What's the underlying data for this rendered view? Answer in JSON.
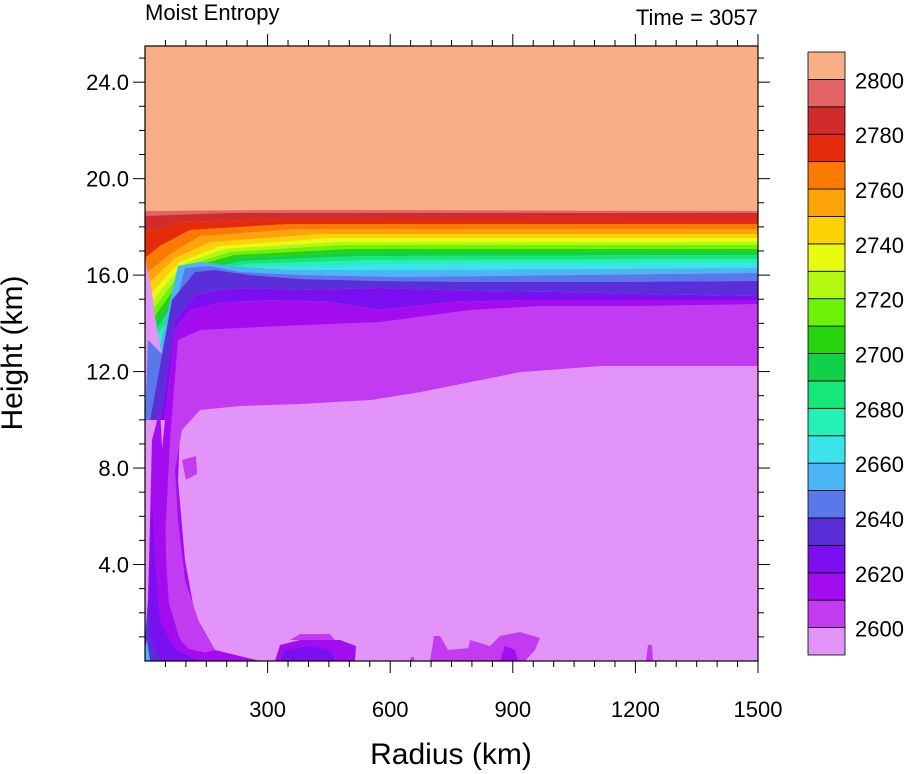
{
  "chart_data": {
    "type": "contour",
    "title_left": "Moist Entropy",
    "title_right": "Time = 3057",
    "xlabel": "Radius (km)",
    "ylabel": "Height (km)",
    "xlim": [
      0,
      1500
    ],
    "ylim": [
      0,
      25.5
    ],
    "x_ticks": [
      300,
      600,
      900,
      1200,
      1500
    ],
    "x_tick_labels": [
      "300",
      "600",
      "900",
      "1200",
      "1500"
    ],
    "y_ticks": [
      4,
      8,
      12,
      16,
      20,
      24
    ],
    "y_tick_labels": [
      "4.0",
      "8.0",
      "12.0",
      "16.0",
      "20.0",
      "24.0"
    ],
    "colorbar": {
      "levels": [
        2600,
        2610,
        2620,
        2630,
        2640,
        2650,
        2660,
        2670,
        2680,
        2690,
        2700,
        2710,
        2720,
        2730,
        2740,
        2750,
        2760,
        2770,
        2780,
        2790,
        2800
      ],
      "labels": [
        "2600",
        "2620",
        "2640",
        "2660",
        "2680",
        "2700",
        "2720",
        "2740",
        "2760",
        "2780",
        "2800"
      ],
      "colors": [
        "#e394f8",
        "#c33bf0",
        "#a40cf0",
        "#7a10f0",
        "#5a2fd8",
        "#5a78ea",
        "#4ab6f5",
        "#3ae4ea",
        "#25f0b8",
        "#15e878",
        "#12d04a",
        "#26d40e",
        "#6df20a",
        "#b4f812",
        "#e8fb10",
        "#fcd204",
        "#fea40a",
        "#fb7a04",
        "#e42c0a",
        "#d22b2b",
        "#e26464",
        "#f8af86"
      ]
    },
    "field_bands": [
      {
        "level": "above 2800",
        "color": "#f8af86",
        "height_range_km": [
          18.8,
          25.5
        ]
      },
      {
        "level": "2610-2790",
        "description": "tightly packed tropopause gradient",
        "height_range_km": [
          16.3,
          18.8
        ]
      },
      {
        "level": "2620-2640",
        "height_range_km": [
          13.2,
          16.3
        ]
      },
      {
        "level": "2610-2620",
        "height_range_km": [
          10.6,
          15.0
        ]
      },
      {
        "level": "below 2610",
        "color": "#e394f8",
        "height_range_km": [
          0,
          12.4
        ]
      }
    ]
  }
}
